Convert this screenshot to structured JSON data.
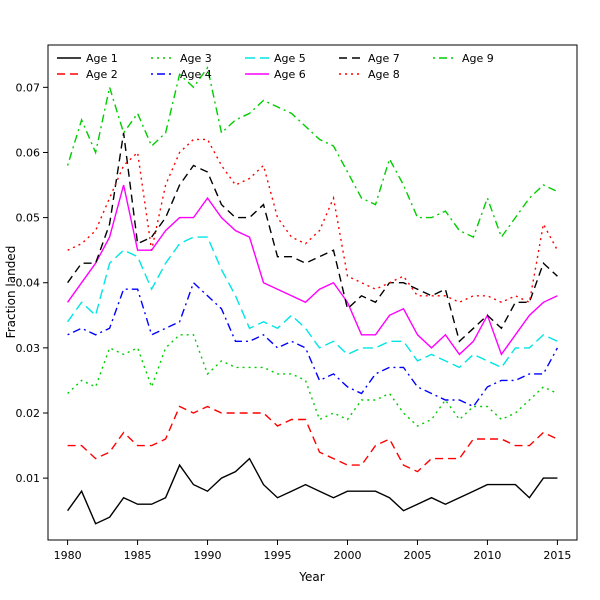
{
  "chart_data": {
    "type": "line",
    "title": "",
    "xlabel": "Year",
    "ylabel": "Fraction landed",
    "grid": false,
    "legend_position": "top-left-two-rows",
    "xlim": [
      1978.6,
      2016.4
    ],
    "ylim": [
      0.0005,
      0.0765
    ],
    "x_ticks": [
      1980,
      1985,
      1990,
      1995,
      2000,
      2005,
      2010,
      2015
    ],
    "y_ticks": [
      0.01,
      0.02,
      0.03,
      0.04,
      0.05,
      0.06,
      0.07
    ],
    "x": [
      1980,
      1981,
      1982,
      1983,
      1984,
      1985,
      1986,
      1987,
      1988,
      1989,
      1990,
      1991,
      1992,
      1993,
      1994,
      1995,
      1996,
      1997,
      1998,
      1999,
      2000,
      2001,
      2002,
      2003,
      2004,
      2005,
      2006,
      2007,
      2008,
      2009,
      2010,
      2011,
      2012,
      2013,
      2014,
      2015
    ],
    "series": [
      {
        "name": "Age 1",
        "color": "#000000",
        "dash": "solid",
        "values": [
          0.005,
          0.008,
          0.003,
          0.004,
          0.007,
          0.006,
          0.006,
          0.007,
          0.012,
          0.009,
          0.008,
          0.01,
          0.011,
          0.013,
          0.009,
          0.007,
          0.008,
          0.009,
          0.008,
          0.007,
          0.008,
          0.008,
          0.008,
          0.007,
          0.005,
          0.006,
          0.007,
          0.006,
          0.007,
          0.008,
          0.009,
          0.009,
          0.009,
          0.007,
          0.01,
          0.01
        ]
      },
      {
        "name": "Age 2",
        "color": "#FF0000",
        "dash": "dashed",
        "values": [
          0.015,
          0.015,
          0.013,
          0.014,
          0.017,
          0.015,
          0.015,
          0.016,
          0.021,
          0.02,
          0.021,
          0.02,
          0.02,
          0.02,
          0.02,
          0.018,
          0.019,
          0.019,
          0.014,
          0.013,
          0.012,
          0.012,
          0.015,
          0.016,
          0.012,
          0.011,
          0.013,
          0.013,
          0.013,
          0.016,
          0.016,
          0.016,
          0.015,
          0.015,
          0.017,
          0.016
        ]
      },
      {
        "name": "Age 3",
        "color": "#00CD00",
        "dash": "dotted",
        "values": [
          0.023,
          0.025,
          0.024,
          0.03,
          0.029,
          0.03,
          0.024,
          0.03,
          0.032,
          0.032,
          0.026,
          0.028,
          0.027,
          0.027,
          0.027,
          0.026,
          0.026,
          0.025,
          0.019,
          0.02,
          0.019,
          0.022,
          0.022,
          0.023,
          0.02,
          0.018,
          0.019,
          0.022,
          0.019,
          0.021,
          0.021,
          0.019,
          0.02,
          0.022,
          0.024,
          0.023
        ]
      },
      {
        "name": "Age 4",
        "color": "#0000FF",
        "dash": "dotdash",
        "values": [
          0.032,
          0.033,
          0.032,
          0.033,
          0.039,
          0.039,
          0.032,
          0.033,
          0.034,
          0.04,
          0.038,
          0.036,
          0.031,
          0.031,
          0.032,
          0.03,
          0.031,
          0.03,
          0.025,
          0.026,
          0.024,
          0.023,
          0.026,
          0.027,
          0.027,
          0.024,
          0.023,
          0.022,
          0.022,
          0.021,
          0.024,
          0.025,
          0.025,
          0.026,
          0.026,
          0.03
        ]
      },
      {
        "name": "Age 5",
        "color": "#00E5E5",
        "dash": "longdash",
        "values": [
          0.034,
          0.037,
          0.035,
          0.043,
          0.045,
          0.044,
          0.039,
          0.043,
          0.046,
          0.047,
          0.047,
          0.042,
          0.038,
          0.033,
          0.034,
          0.033,
          0.035,
          0.033,
          0.03,
          0.031,
          0.029,
          0.03,
          0.03,
          0.031,
          0.031,
          0.028,
          0.029,
          0.028,
          0.027,
          0.029,
          0.028,
          0.027,
          0.03,
          0.03,
          0.032,
          0.031
        ]
      },
      {
        "name": "Age 6",
        "color": "#FF00FF",
        "dash": "solid",
        "values": [
          0.037,
          0.04,
          0.043,
          0.047,
          0.055,
          0.045,
          0.045,
          0.048,
          0.05,
          0.05,
          0.053,
          0.05,
          0.048,
          0.047,
          0.04,
          0.039,
          0.038,
          0.037,
          0.039,
          0.04,
          0.037,
          0.032,
          0.032,
          0.035,
          0.036,
          0.032,
          0.03,
          0.032,
          0.029,
          0.031,
          0.035,
          0.029,
          0.032,
          0.035,
          0.037,
          0.038
        ]
      },
      {
        "name": "Age 7",
        "color": "#000000",
        "dash": "dashed",
        "values": [
          0.04,
          0.043,
          0.043,
          0.049,
          0.063,
          0.046,
          0.047,
          0.05,
          0.055,
          0.058,
          0.057,
          0.052,
          0.05,
          0.05,
          0.052,
          0.044,
          0.044,
          0.043,
          0.044,
          0.045,
          0.036,
          0.038,
          0.037,
          0.04,
          0.04,
          0.039,
          0.038,
          0.039,
          0.031,
          0.033,
          0.035,
          0.033,
          0.037,
          0.037,
          0.043,
          0.041
        ]
      },
      {
        "name": "Age 8",
        "color": "#FF0000",
        "dash": "dotted",
        "values": [
          0.045,
          0.046,
          0.048,
          0.053,
          0.058,
          0.06,
          0.045,
          0.055,
          0.06,
          0.062,
          0.062,
          0.058,
          0.055,
          0.056,
          0.058,
          0.05,
          0.047,
          0.046,
          0.048,
          0.053,
          0.041,
          0.04,
          0.039,
          0.04,
          0.041,
          0.038,
          0.038,
          0.038,
          0.037,
          0.038,
          0.038,
          0.037,
          0.038,
          0.037,
          0.049,
          0.045
        ]
      },
      {
        "name": "Age 9",
        "color": "#00CD00",
        "dash": "dotdash",
        "values": [
          0.058,
          0.065,
          0.06,
          0.07,
          0.063,
          0.066,
          0.061,
          0.063,
          0.072,
          0.07,
          0.073,
          0.063,
          0.065,
          0.066,
          0.068,
          0.067,
          0.066,
          0.064,
          0.062,
          0.061,
          0.057,
          0.053,
          0.052,
          0.059,
          0.055,
          0.05,
          0.05,
          0.051,
          0.048,
          0.047,
          0.053,
          0.047,
          0.05,
          0.053,
          0.055,
          0.054
        ]
      }
    ]
  }
}
